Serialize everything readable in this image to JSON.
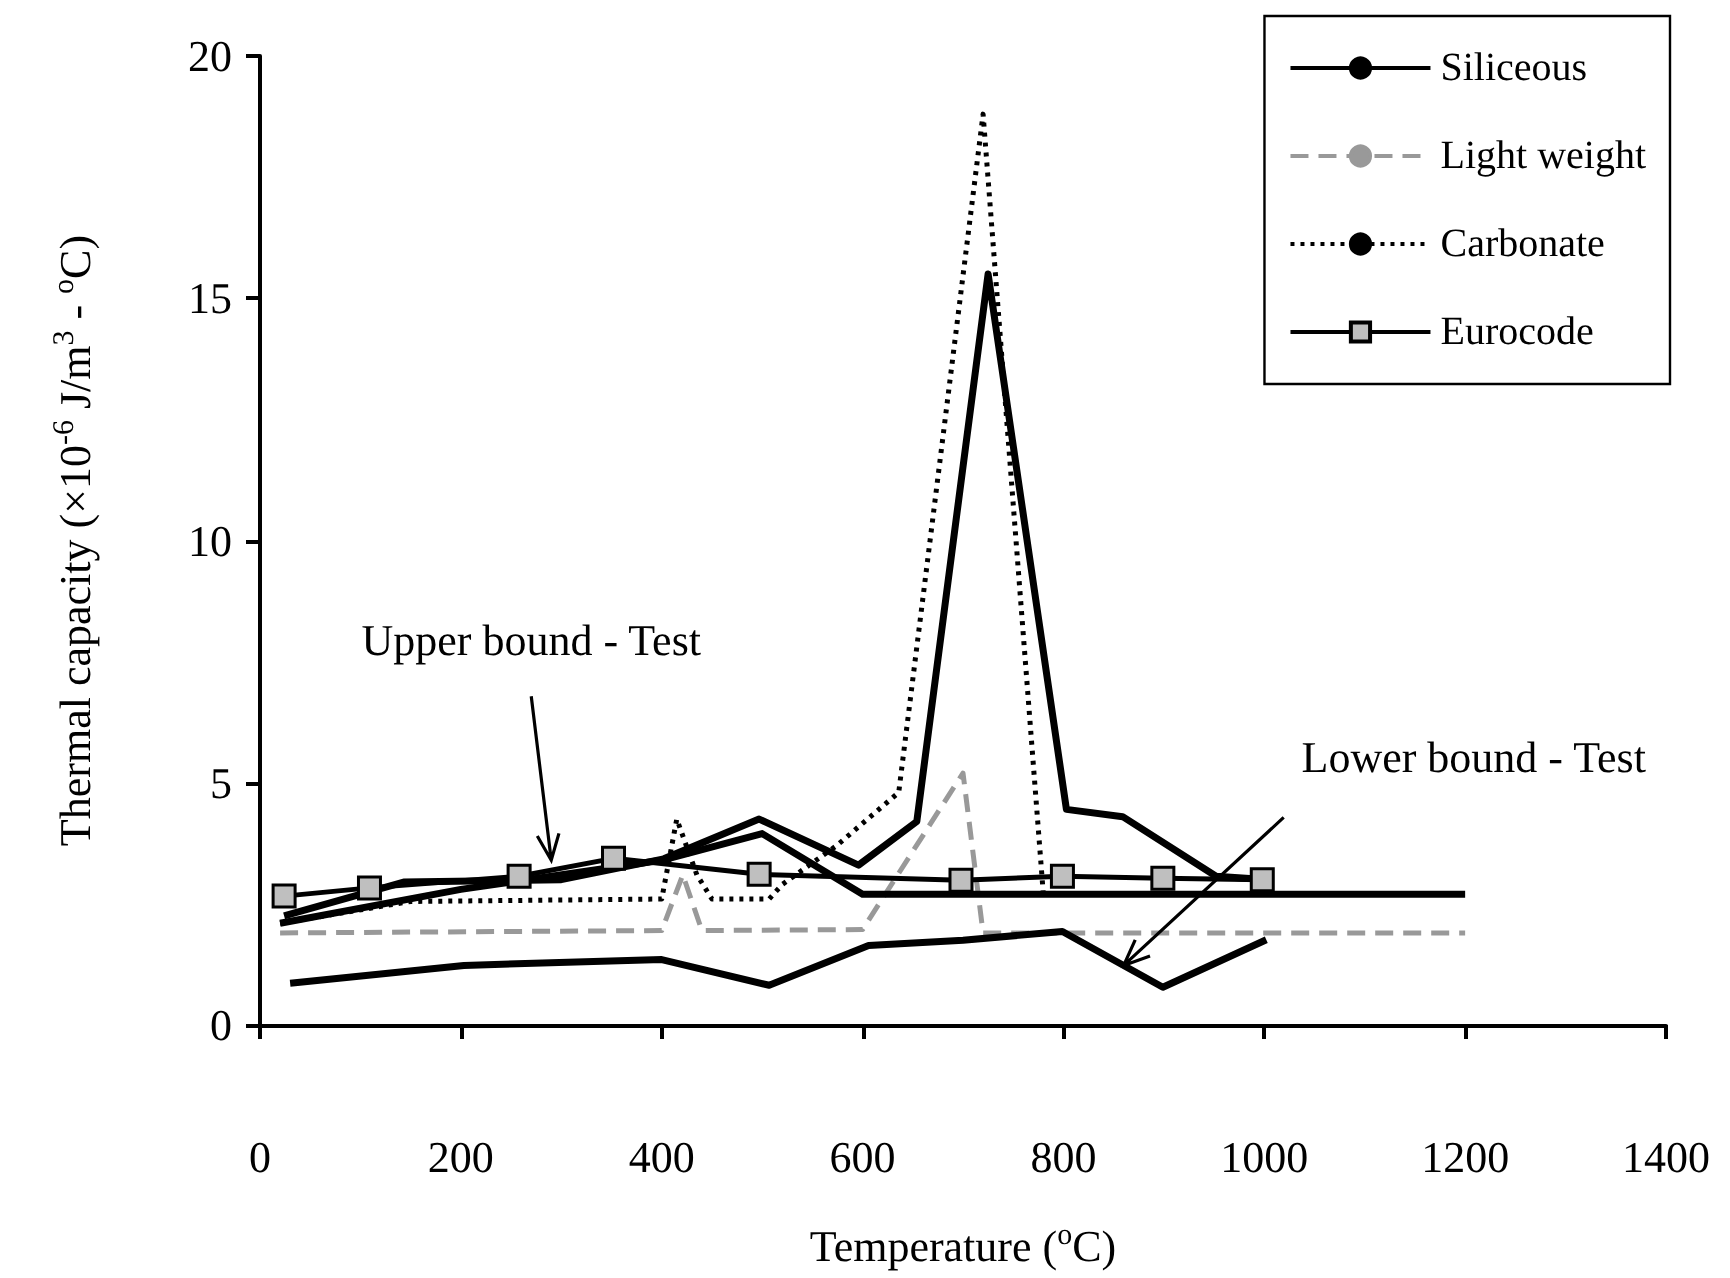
{
  "chart_data": {
    "type": "line",
    "xlabel": "Temperature ($^{o}$C)",
    "ylabel": "Thermal capacity (×10$^{-6}$ J/m$^{3}$ - $^{o}$C)",
    "xlim": [
      0,
      1400
    ],
    "xticks": [
      0,
      200,
      400,
      600,
      800,
      1000,
      1200,
      1400
    ],
    "ylim": [
      0,
      20
    ],
    "yticks": [
      0,
      5,
      10,
      15,
      20
    ],
    "grid": false,
    "legend": "top right",
    "marker": "none",
    "series": [
      {
        "name": "Siliceous",
        "color": "#000000",
        "line_style": "solid",
        "x": [
          24,
          143,
          300,
          402,
          497,
          596,
          654,
          725,
          803,
          859,
          952,
          1004
        ],
        "values": [
          2.25,
          2.95,
          3.0,
          3.43,
          4.25,
          3.3,
          4.2,
          15.5,
          4.45,
          4.3,
          3.07,
          3.0
        ]
      },
      {
        "name": "Light weight",
        "color": "#999999",
        "line_style": "dashed",
        "x": [
          20,
          400,
          421,
          440,
          600,
          700,
          720,
          1200
        ],
        "values": [
          1.9,
          1.95,
          3.1,
          1.95,
          1.97,
          5.2,
          1.9,
          1.9
        ]
      },
      {
        "name": "Carbonate",
        "color": "#000000",
        "line_style": "dotted",
        "x": [
          20,
          150,
          400,
          415,
          435,
          450,
          507,
          520,
          574,
          636,
          720,
          780,
          1200
        ],
        "values": [
          2.1,
          2.55,
          2.6,
          4.25,
          3.1,
          2.6,
          2.6,
          2.9,
          3.7,
          4.8,
          18.8,
          2.7,
          2.7
        ]
      },
      {
        "name": "Eurocode",
        "color": "#000000",
        "line_style": "solid",
        "marker": "square",
        "x": [
          24,
          109,
          258,
          352,
          497,
          698,
          799,
          899,
          998
        ],
        "values": [
          2.66,
          2.83,
          3.07,
          3.44,
          3.11,
          2.99,
          3.07,
          3.03,
          3.0
        ]
      },
      {
        "color": "#000000",
        "line_style": "solid",
        "x": [
          30,
          203,
          400,
          507,
          606,
          700,
          799,
          899,
          1002
        ],
        "values": [
          0.86,
          1.23,
          1.35,
          0.82,
          1.64,
          1.75,
          1.93,
          0.78,
          1.76
        ]
      },
      {
        "color": "#000000",
        "line_style": "solid",
        "x": [
          20,
          200,
          400,
          500,
          600,
          1200
        ],
        "values": [
          2.1,
          2.8,
          3.4,
          3.95,
          2.7,
          2.7
        ]
      }
    ],
    "annotations": [
      {
        "text": "Upper bound - Test",
        "x": 290,
        "y": 3.4
      },
      {
        "text": "Lower bound - Test",
        "x": 860,
        "y": 1.23
      }
    ]
  }
}
